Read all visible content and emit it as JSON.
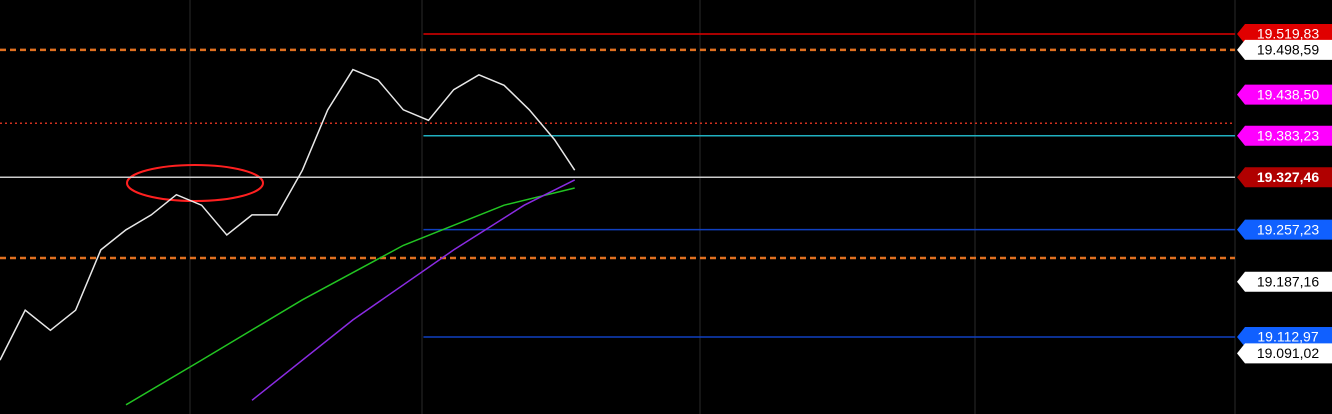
{
  "chart_data": {
    "type": "line",
    "xlim": [
      0,
      49
    ],
    "ylim": [
      19009.6,
      19565.5
    ],
    "series": [
      {
        "name": null,
        "color": "#e8e8e8",
        "x": [
          0,
          1,
          2,
          3,
          4,
          5,
          6,
          7,
          8,
          9,
          10,
          11,
          12,
          13,
          14,
          15,
          16,
          17,
          18,
          19,
          20,
          21,
          22,
          22.8
        ],
        "values": [
          19082,
          19149,
          19122,
          19149,
          19230,
          19257,
          19277,
          19304,
          19290,
          19250,
          19277,
          19277,
          19337,
          19418,
          19472,
          19458,
          19418,
          19404,
          19445,
          19465,
          19451,
          19418,
          19378,
          19337
        ]
      },
      {
        "name": null,
        "color": "#22c422",
        "x": [
          5,
          8,
          12,
          16,
          20,
          22.8
        ],
        "values": [
          19022,
          19082,
          19163,
          19236,
          19290,
          19313
        ]
      },
      {
        "name": null,
        "color": "#8a2be2",
        "x": [
          10,
          14,
          18,
          20.8,
          22.8
        ],
        "values": [
          19028,
          19136,
          19230,
          19290,
          19324
        ]
      }
    ],
    "levels": [
      {
        "value": 19519.83,
        "label": "19.519,83",
        "color": "#e00000",
        "line": "solid",
        "from": 16.8
      },
      {
        "value": 19498.59,
        "label": "19.498,59",
        "color": "#e07020",
        "line": "dashed",
        "from": 0,
        "tag": "#ffffff"
      },
      {
        "value": 19438.5,
        "label": "19.438,50",
        "color": "#ff00ff",
        "line": null,
        "from": 0
      },
      {
        "value": 19400,
        "label": null,
        "color": "#d03020",
        "line": "dotted",
        "from": 0
      },
      {
        "value": 19383.23,
        "label": "19.383,23",
        "color": "#ff00ff",
        "line": "solid",
        "from": 16.8,
        "linecolor": "#20b0c0"
      },
      {
        "value": 19327.46,
        "label": "19.327,46",
        "color": "#b00000",
        "line": "solid",
        "from": 0,
        "linecolor": "#cccccc"
      },
      {
        "value": 19257.23,
        "label": "19.257,23",
        "color": "#1060ff",
        "line": "solid",
        "from": 16.8,
        "linecolor": "#1040c0"
      },
      {
        "value": 19219,
        "label": null,
        "color": "#e07020",
        "line": "dashed",
        "from": 0
      },
      {
        "value": 19187.16,
        "label": "19.187,16",
        "color": "#ffffff",
        "line": null,
        "from": 0
      },
      {
        "value": 19112.97,
        "label": "19.112,97",
        "color": "#1060ff",
        "line": "solid",
        "from": 16.8,
        "linecolor": "#1040c0"
      },
      {
        "value": 19091.02,
        "label": "19.091,02",
        "color": "#ffffff",
        "line": null,
        "from": 0
      }
    ]
  }
}
